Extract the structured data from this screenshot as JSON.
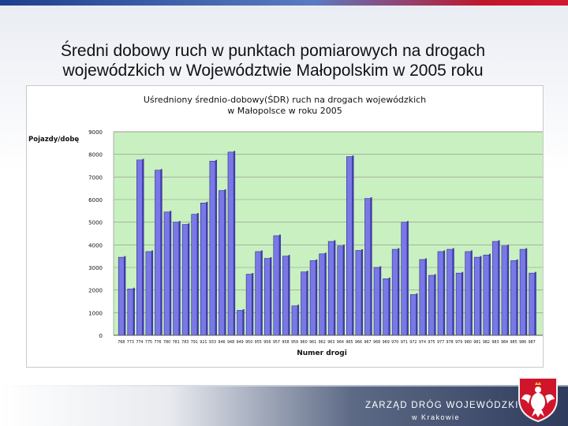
{
  "slide": {
    "title_line1": "Średni dobowy ruch w punktach pomiarowych na drogach",
    "title_line2": "wojewódzkich w Województwie Małopolskim w 2005 roku"
  },
  "footer": {
    "org_name": "ZARZĄD DRÓG WOJEWÓDZKICH",
    "org_city": "w Krakowie"
  },
  "colors": {
    "plot_background": "#c9f0c0",
    "bar_fill": "#7a78e6",
    "bar_side": "#3e3ca8",
    "gridline": "#8e8e8e"
  },
  "chart_data": {
    "type": "bar",
    "title": "Uśredniony średnio-dobowy(ŚDR) ruch na drogach wojewódzkich w Małopolsce w roku 2005",
    "title_lines": [
      "Uśredniony średnio-dobowy(ŚDR) ruch na drogach wojewódzkich",
      "w Małopolsce w roku 2005"
    ],
    "xlabel": "Numer drogi",
    "ylabel": "Pojazdy/dobę",
    "ylim": [
      0,
      9000
    ],
    "yticks": [
      0,
      1000,
      2000,
      3000,
      4000,
      5000,
      6000,
      7000,
      8000,
      9000
    ],
    "grid": true,
    "legend": "none",
    "categories": [
      "768",
      "773",
      "774",
      "775",
      "776",
      "780",
      "781",
      "783",
      "791",
      "921",
      "933",
      "946",
      "948",
      "949",
      "950",
      "955",
      "956",
      "957",
      "958",
      "959",
      "960",
      "961",
      "962",
      "963",
      "964",
      "965",
      "966",
      "967",
      "968",
      "969",
      "970",
      "971",
      "972",
      "974",
      "975",
      "977",
      "978",
      "979",
      "980",
      "981",
      "982",
      "983",
      "984",
      "985",
      "986",
      "987"
    ],
    "values": [
      3450,
      2050,
      7750,
      3700,
      7300,
      5450,
      5000,
      4900,
      5350,
      5850,
      7700,
      6400,
      8100,
      1100,
      2700,
      3700,
      3400,
      4400,
      3500,
      1300,
      2800,
      3300,
      3600,
      4150,
      3950,
      7900,
      3750,
      6050,
      3000,
      2500,
      3800,
      5000,
      1800,
      3350,
      2650,
      3700,
      3800,
      2750,
      3700,
      3450,
      3550,
      4150,
      3950,
      3300,
      3800,
      2750
    ]
  }
}
